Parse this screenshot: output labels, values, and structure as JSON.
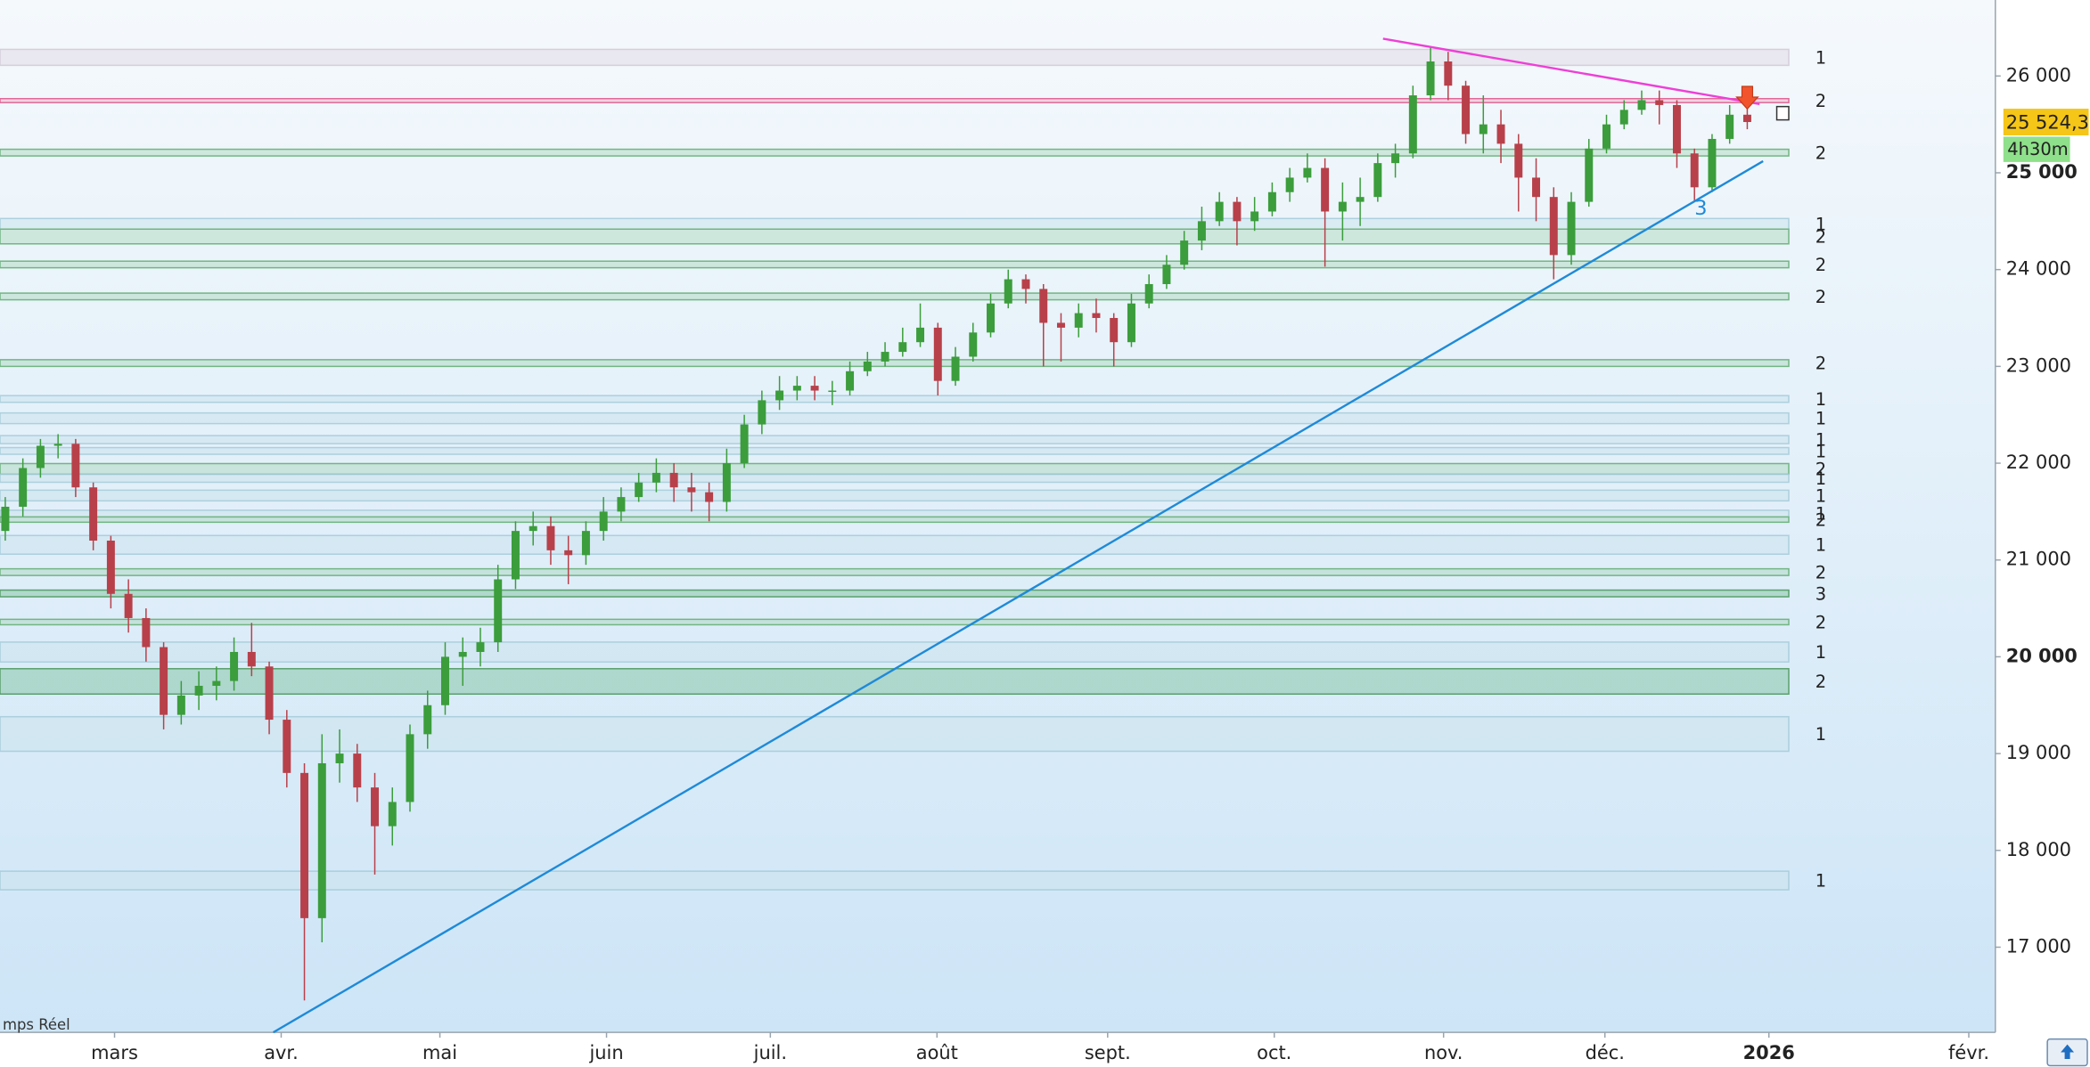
{
  "chart_data": {
    "type": "candlestick",
    "categories": [
      null,
      null,
      null,
      null,
      null,
      null,
      null,
      null,
      null,
      null,
      null,
      null,
      null,
      null,
      null,
      null,
      null,
      null,
      null,
      null,
      null,
      null,
      null,
      null,
      null,
      null,
      null,
      null,
      null,
      null,
      null,
      null,
      null,
      null,
      null,
      null,
      null,
      null,
      null,
      null,
      null,
      null,
      null,
      null,
      null,
      null,
      null,
      null,
      null,
      null,
      null,
      null,
      null,
      null,
      null,
      null,
      null,
      null,
      null,
      null,
      null,
      null,
      null,
      null,
      null,
      null,
      null,
      null,
      null,
      null,
      null,
      null,
      null,
      null,
      null,
      null,
      null,
      null,
      null,
      null,
      null,
      null,
      null,
      null,
      null,
      null,
      null,
      null,
      null,
      null,
      null,
      null,
      null,
      null,
      null,
      null,
      null,
      null,
      null,
      null
    ],
    "open": [
      21300,
      21550,
      21950,
      22180,
      22200,
      21750,
      21200,
      20650,
      20400,
      20100,
      19400,
      19600,
      19700,
      19750,
      20050,
      19900,
      19350,
      18800,
      17300,
      18900,
      19000,
      18650,
      18250,
      18500,
      19200,
      19500,
      20000,
      20050,
      20150,
      20800,
      21300,
      21350,
      21100,
      21050,
      21300,
      21500,
      21650,
      21800,
      21900,
      21750,
      21700,
      21600,
      22000,
      22400,
      22650,
      22750,
      22800,
      22750,
      22750,
      22950,
      23050,
      23150,
      23250,
      23400,
      22850,
      23100,
      23350,
      23650,
      23900,
      23800,
      23450,
      23400,
      23550,
      23500,
      23250,
      23650,
      23850,
      24050,
      24300,
      24500,
      24700,
      24500,
      24600,
      24800,
      24950,
      25050,
      24600,
      24700,
      24750,
      25100,
      25200,
      25800,
      26150,
      25900,
      25400,
      25500,
      25300,
      24950,
      24750,
      24150,
      24700,
      25250,
      25500,
      25650,
      25750,
      25700,
      25200,
      24850,
      25350,
      25600
    ],
    "high": [
      21650,
      22050,
      22250,
      22300,
      22250,
      21800,
      21250,
      20800,
      20500,
      20150,
      19750,
      19850,
      19900,
      20200,
      20350,
      19950,
      19450,
      18900,
      19200,
      19250,
      19100,
      18800,
      18650,
      19300,
      19650,
      20150,
      20200,
      20300,
      20950,
      21400,
      21500,
      21450,
      21250,
      21400,
      21650,
      21750,
      21900,
      22050,
      22000,
      21900,
      21800,
      22150,
      22500,
      22750,
      22900,
      22900,
      22900,
      22850,
      23050,
      23150,
      23250,
      23400,
      23650,
      23450,
      23200,
      23450,
      23750,
      24000,
      23950,
      23850,
      23550,
      23650,
      23700,
      23550,
      23750,
      23950,
      24150,
      24400,
      24650,
      24800,
      24750,
      24750,
      24900,
      25050,
      25200,
      25150,
      24900,
      24950,
      25200,
      25300,
      25900,
      26300,
      26250,
      25950,
      25800,
      25650,
      25400,
      25150,
      24850,
      24800,
      25350,
      25600,
      25750,
      25850,
      25850,
      25750,
      25250,
      25400,
      25700,
      25700
    ],
    "low": [
      21200,
      21450,
      21850,
      22050,
      21650,
      21100,
      20500,
      20250,
      19950,
      19250,
      19300,
      19450,
      19550,
      19650,
      19800,
      19200,
      18650,
      16450,
      17050,
      18700,
      18500,
      17750,
      18050,
      18400,
      19050,
      19400,
      19700,
      19900,
      20050,
      20700,
      21150,
      20950,
      20750,
      20950,
      21200,
      21400,
      21600,
      21700,
      21600,
      21500,
      21400,
      21500,
      21950,
      22300,
      22550,
      22650,
      22650,
      22600,
      22700,
      22900,
      23000,
      23100,
      23200,
      22700,
      22800,
      23050,
      23300,
      23600,
      23650,
      23000,
      23050,
      23300,
      23350,
      23000,
      23200,
      23600,
      23800,
      24000,
      24200,
      24450,
      24250,
      24400,
      24550,
      24700,
      24900,
      24030,
      24300,
      24450,
      24700,
      24950,
      25150,
      25750,
      25750,
      25300,
      25200,
      25100,
      24600,
      24500,
      23900,
      24050,
      24650,
      25200,
      25450,
      25600,
      25500,
      25050,
      24700,
      24800,
      25300,
      25450
    ],
    "close": [
      21550,
      21950,
      22180,
      22200,
      21750,
      21200,
      20650,
      20400,
      20100,
      19400,
      19600,
      19700,
      19750,
      20050,
      19900,
      19350,
      18800,
      17300,
      18900,
      19000,
      18650,
      18250,
      18500,
      19200,
      19500,
      20000,
      20050,
      20150,
      20800,
      21300,
      21350,
      21100,
      21050,
      21300,
      21500,
      21650,
      21800,
      21900,
      21750,
      21700,
      21600,
      22000,
      22400,
      22650,
      22750,
      22800,
      22750,
      22750,
      22950,
      23050,
      23150,
      23250,
      23400,
      22850,
      23100,
      23350,
      23650,
      23900,
      23800,
      23450,
      23400,
      23550,
      23500,
      23250,
      23650,
      23850,
      24050,
      24300,
      24500,
      24700,
      24500,
      24600,
      24800,
      24950,
      25050,
      24600,
      24700,
      24750,
      25100,
      25200,
      25800,
      26150,
      25900,
      25400,
      25500,
      25300,
      24950,
      24750,
      24150,
      24700,
      25250,
      25500,
      25650,
      25750,
      25700,
      25200,
      24850,
      25350,
      25600,
      25524.3
    ],
    "up_color": "#3b9d3b",
    "down_color": "#b8404a",
    "xlim": [
      -0.3,
      113.1
    ],
    "xticks": [
      {
        "value": 6.21,
        "label": "mars"
      },
      {
        "value": 15.68,
        "label": "avr."
      },
      {
        "value": 24.7,
        "label": "mai"
      },
      {
        "value": 34.17,
        "label": "juin"
      },
      {
        "value": 43.48,
        "label": "juil."
      },
      {
        "value": 52.95,
        "label": "août"
      },
      {
        "value": 62.65,
        "label": "sept."
      },
      {
        "value": 72.12,
        "label": "oct."
      },
      {
        "value": 81.74,
        "label": "nov."
      },
      {
        "value": 90.91,
        "label": "déc."
      },
      {
        "value": 100.23,
        "label": "2026",
        "bold": true
      },
      {
        "value": 111.59,
        "label": "févr."
      }
    ],
    "ylim": [
      16120,
      26785
    ],
    "yticks": [
      {
        "value": 17000,
        "label": "17 000"
      },
      {
        "value": 18000,
        "label": "18 000"
      },
      {
        "value": 19000,
        "label": "19 000"
      },
      {
        "value": 20000,
        "label": "20 000",
        "bold": true
      },
      {
        "value": 21000,
        "label": "21 000"
      },
      {
        "value": 22000,
        "label": "22 000"
      },
      {
        "value": 23000,
        "label": "23 000"
      },
      {
        "value": 24000,
        "label": "24 000"
      },
      {
        "value": 25000,
        "label": "25 000",
        "bold": true
      },
      {
        "value": 26000,
        "label": "26 000"
      }
    ],
    "zones": [
      {
        "from": 26110,
        "to": 26275,
        "count": 1,
        "style": "gray"
      },
      {
        "from": 25725,
        "to": 25766,
        "count": 2,
        "style": "pink"
      },
      {
        "from": 25174,
        "to": 25243,
        "count": 2,
        "style": "green"
      },
      {
        "from": 24418,
        "to": 24528,
        "count": 1,
        "style": "light"
      },
      {
        "from": 24266,
        "to": 24418,
        "count": 2,
        "style": "green"
      },
      {
        "from": 24019,
        "to": 24087,
        "count": 2,
        "style": "green"
      },
      {
        "from": 23688,
        "to": 23757,
        "count": 2,
        "style": "green"
      },
      {
        "from": 23000,
        "to": 23069,
        "count": 2,
        "style": "green"
      },
      {
        "from": 22629,
        "to": 22698,
        "count": 1,
        "style": "light"
      },
      {
        "from": 22409,
        "to": 22519,
        "count": 1,
        "style": "light"
      },
      {
        "from": 22202,
        "to": 22285,
        "count": 1,
        "style": "light"
      },
      {
        "from": 22092,
        "to": 22161,
        "count": 1,
        "style": "light"
      },
      {
        "from": 21886,
        "to": 21996,
        "count": 2,
        "style": "green"
      },
      {
        "from": 21803,
        "to": 21886,
        "count": 1,
        "style": "light"
      },
      {
        "from": 21611,
        "to": 21721,
        "count": 1,
        "style": "light"
      },
      {
        "from": 21445,
        "to": 21514,
        "count": 1,
        "style": "light"
      },
      {
        "from": 21390,
        "to": 21445,
        "count": 2,
        "style": "green"
      },
      {
        "from": 21060,
        "to": 21253,
        "count": 1,
        "style": "light"
      },
      {
        "from": 20840,
        "to": 20909,
        "count": 2,
        "style": "green"
      },
      {
        "from": 20620,
        "to": 20689,
        "count": 3,
        "style": "dark"
      },
      {
        "from": 20331,
        "to": 20387,
        "count": 2,
        "style": "green"
      },
      {
        "from": 19946,
        "to": 20152,
        "count": 1,
        "style": "light"
      },
      {
        "from": 19615,
        "to": 19877,
        "count": 2,
        "style": "dark"
      },
      {
        "from": 19024,
        "to": 19381,
        "count": 1,
        "style": "light"
      },
      {
        "from": 17593,
        "to": 17785,
        "count": 1,
        "style": "light"
      }
    ],
    "trendlines": [
      {
        "x": [
          15.23,
          99.9
        ],
        "y": [
          16120,
          25120
        ],
        "color": "#1e8ad8"
      },
      {
        "x": [
          78.3,
          99.7
        ],
        "y": [
          26385,
          25710
        ],
        "color": "#ee3fd6"
      }
    ],
    "annotations": [
      {
        "text": "3",
        "x": 96.36,
        "y": 24625,
        "color": "#1e8ad8"
      }
    ],
    "last_price": {
      "value": 25524.3,
      "label": "25 524,3"
    },
    "countdown": "4h30m",
    "footer_text": "mps Réel"
  }
}
